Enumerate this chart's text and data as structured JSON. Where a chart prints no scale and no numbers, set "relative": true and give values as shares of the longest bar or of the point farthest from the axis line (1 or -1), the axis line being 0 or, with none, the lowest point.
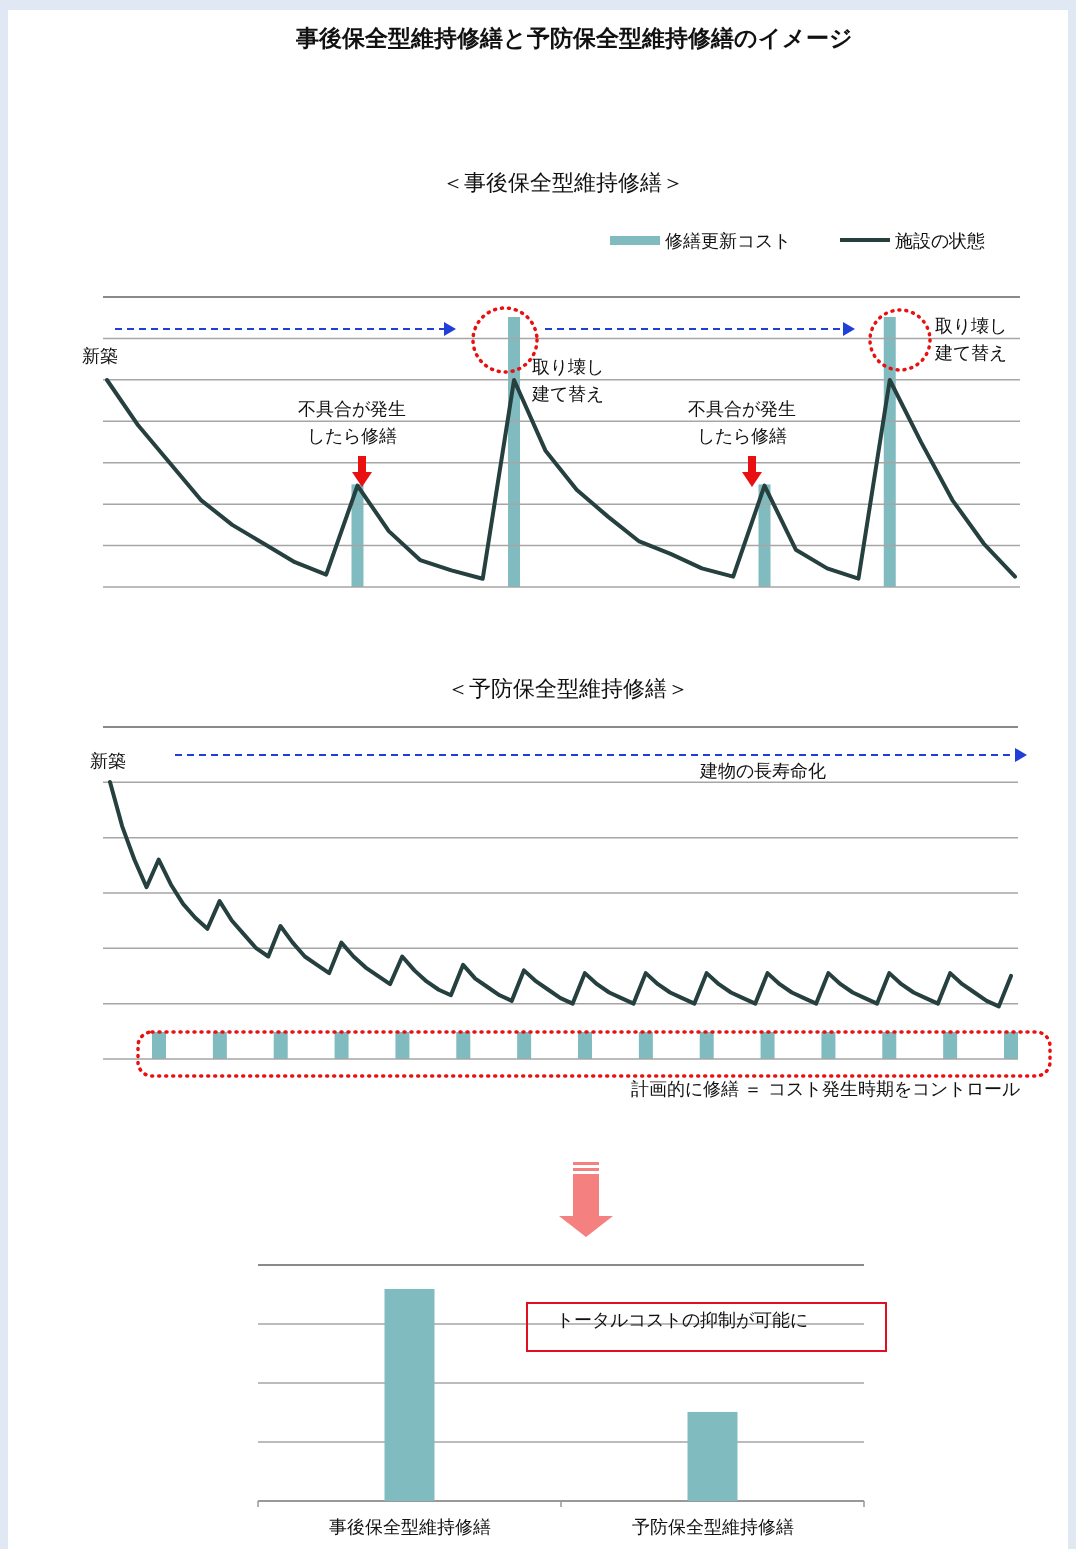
{
  "chart_data": [
    {
      "type": "line",
      "title": "事後保全型維持修繕と予防保全型維持修繕のイメージ",
      "subtitle": "＜事後保全型維持修繕＞",
      "relative": true,
      "grid": true,
      "legend": "top right",
      "categories": [
        null,
        null,
        null,
        null,
        null,
        null,
        null,
        null,
        null,
        null,
        null,
        null,
        null,
        null,
        null,
        null,
        null,
        null,
        null,
        null,
        null,
        null,
        null,
        null,
        null,
        null,
        null,
        null,
        null,
        null
      ],
      "series": [
        {
          "name": "施設の状態",
          "color": "#25403f",
          "values": [
            1,
            0.78,
            0.6,
            0.42,
            0.3,
            0.21,
            0.12,
            0.06,
            0.49,
            0.27,
            0.13,
            0.08,
            0.04,
            1,
            0.66,
            0.47,
            0.34,
            0.22,
            0.16,
            0.09,
            0.05,
            0.49,
            0.18,
            0.09,
            0.04,
            1,
            0.7,
            0.42,
            0.21,
            0.05
          ]
        }
      ],
      "annotations": [
        "新築",
        "不具合が発生したら修繕",
        "取り壊し建て替え",
        "不具合が発生したら修繕",
        "取り壊し建て替え"
      ]
    },
    {
      "type": "bar",
      "relative": true,
      "legend": "top right",
      "categories": [
        null,
        null,
        null,
        null,
        null,
        null,
        null,
        null,
        null,
        null,
        null,
        null,
        null,
        null,
        null,
        null,
        null,
        null,
        null,
        null,
        null,
        null,
        null,
        null,
        null,
        null,
        null,
        null,
        null,
        null
      ],
      "series": [
        {
          "name": "修繕更新コスト",
          "color": "#80bbc0",
          "values": [
            null,
            null,
            null,
            null,
            null,
            null,
            null,
            null,
            0.38,
            null,
            null,
            null,
            null,
            1,
            null,
            null,
            null,
            null,
            null,
            null,
            null,
            0.38,
            null,
            null,
            null,
            1,
            null,
            null,
            null,
            null
          ]
        }
      ]
    },
    {
      "type": "line",
      "title": "＜予防保全型維持修繕＞",
      "relative": true,
      "grid": true,
      "categories": [
        null,
        null,
        null,
        null,
        null,
        null,
        null,
        null,
        null,
        null,
        null,
        null,
        null,
        null,
        null,
        null,
        null,
        null,
        null,
        null,
        null,
        null,
        null,
        null,
        null,
        null,
        null,
        null,
        null,
        null,
        null,
        null,
        null,
        null,
        null,
        null,
        null,
        null,
        null,
        null,
        null,
        null,
        null,
        null,
        null,
        null,
        null,
        null,
        null,
        null,
        null,
        null,
        null,
        null,
        null,
        null,
        null,
        null,
        null,
        null,
        null,
        null,
        null,
        null,
        null,
        null,
        null,
        null,
        null,
        null,
        null,
        null,
        null,
        null,
        null
      ],
      "series": [
        {
          "color": "#25403f",
          "values": [
            1,
            0.84,
            0.72,
            0.62,
            0.72,
            0.63,
            0.56,
            0.51,
            0.47,
            0.57,
            0.5,
            0.45,
            0.4,
            0.37,
            0.48,
            0.42,
            0.37,
            0.34,
            0.31,
            0.42,
            0.37,
            0.33,
            0.3,
            0.27,
            0.37,
            0.32,
            0.28,
            0.25,
            0.23,
            0.34,
            0.29,
            0.26,
            0.23,
            0.21,
            0.32,
            0.28,
            0.25,
            0.22,
            0.2,
            0.31,
            0.27,
            0.24,
            0.22,
            0.2,
            0.31,
            0.27,
            0.24,
            0.22,
            0.2,
            0.31,
            0.27,
            0.24,
            0.22,
            0.2,
            0.31,
            0.27,
            0.24,
            0.22,
            0.2,
            0.31,
            0.27,
            0.24,
            0.22,
            0.2,
            0.31,
            0.27,
            0.24,
            0.22,
            0.2,
            0.31,
            0.27,
            0.24,
            0.21,
            0.19,
            0.3
          ]
        }
      ],
      "annotations": [
        "新築",
        "建物の長寿命化",
        "計画的に修繕 ＝ コスト発生時期をコントロール"
      ]
    },
    {
      "type": "bar",
      "relative": true,
      "categories": [
        null,
        null,
        null,
        null,
        null,
        null,
        null,
        null,
        null,
        null,
        null,
        null,
        null,
        null,
        null
      ],
      "values": [
        1,
        1,
        1,
        1,
        1,
        1,
        1,
        1,
        1,
        1,
        1,
        1,
        1,
        1,
        1
      ],
      "color": "#80bbc0"
    },
    {
      "type": "bar",
      "relative": true,
      "grid": true,
      "categories": [
        "事後保全型維持修繕",
        "予防保全型維持修繕"
      ],
      "values": [
        1,
        0.42
      ],
      "color": "#80bbc0",
      "annotations": [
        "トータルコストの抑制が可能に"
      ]
    }
  ]
}
